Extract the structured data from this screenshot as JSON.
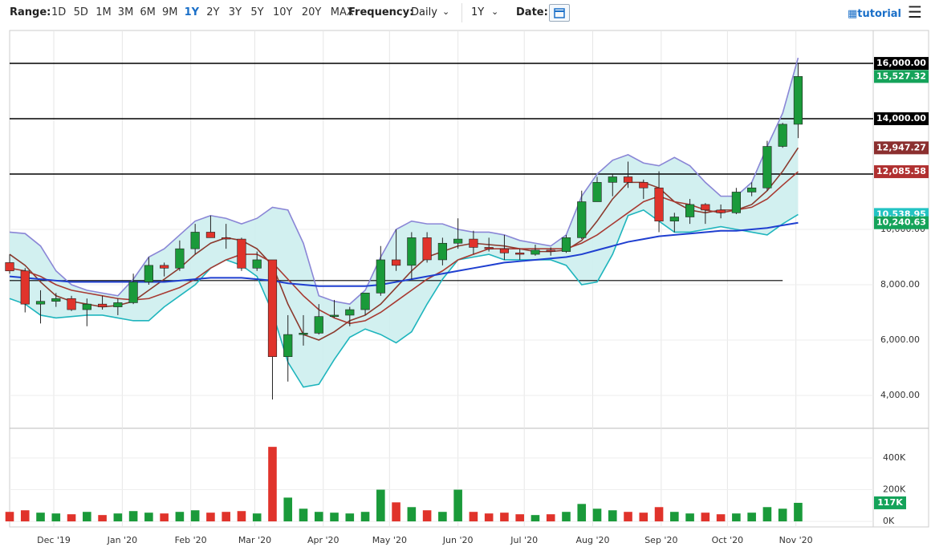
{
  "toolbar": {
    "range_label": "Range:",
    "ranges": [
      "1D",
      "5D",
      "1M",
      "3M",
      "6M",
      "9M",
      "1Y",
      "2Y",
      "3Y",
      "5Y",
      "10Y",
      "20Y",
      "MAX"
    ],
    "active_range": 6,
    "frequency_label": "Frequency:",
    "frequency": "Daily",
    "period": "1Y",
    "date_label": "Date:",
    "tutorial": "tutorial"
  },
  "chart_data": {
    "type": "candlestick",
    "x": [
      0,
      7,
      14,
      21,
      28,
      35,
      42,
      49,
      56,
      63,
      70,
      77,
      84,
      91,
      98,
      105,
      112,
      119,
      126,
      133,
      140,
      147,
      154,
      161,
      168,
      175,
      182,
      189,
      196,
      203,
      210,
      217,
      224,
      231,
      238,
      245,
      252,
      259,
      266,
      273,
      280,
      287,
      294,
      301,
      308,
      315,
      322,
      329,
      336,
      343,
      350,
      357
    ],
    "ohlc": [
      [
        8800,
        9100,
        8400,
        8500
      ],
      [
        8500,
        8600,
        7000,
        7300
      ],
      [
        7300,
        7800,
        6600,
        7400
      ],
      [
        7400,
        7700,
        7200,
        7500
      ],
      [
        7500,
        7600,
        7050,
        7100
      ],
      [
        7100,
        7500,
        6500,
        7300
      ],
      [
        7300,
        7600,
        7100,
        7200
      ],
      [
        7200,
        7500,
        6900,
        7350
      ],
      [
        7350,
        8400,
        7300,
        8100
      ],
      [
        8100,
        9000,
        8000,
        8700
      ],
      [
        8700,
        8800,
        8300,
        8600
      ],
      [
        8600,
        9600,
        8500,
        9300
      ],
      [
        9300,
        10200,
        9100,
        9900
      ],
      [
        9900,
        10500,
        9700,
        9700
      ],
      [
        9700,
        10200,
        9300,
        9650
      ],
      [
        9650,
        9700,
        8500,
        8600
      ],
      [
        8600,
        9200,
        8500,
        8900
      ],
      [
        8900,
        8900,
        3850,
        5400
      ],
      [
        5400,
        6900,
        4500,
        6200
      ],
      [
        6200,
        6900,
        5800,
        6250
      ],
      [
        6250,
        7300,
        6200,
        6850
      ],
      [
        6850,
        7450,
        6800,
        6900
      ],
      [
        6900,
        7200,
        6500,
        7100
      ],
      [
        7100,
        7700,
        6900,
        7700
      ],
      [
        7700,
        9400,
        7600,
        8900
      ],
      [
        8900,
        10000,
        8500,
        8700
      ],
      [
        8700,
        9900,
        8200,
        9700
      ],
      [
        9700,
        9900,
        8800,
        8900
      ],
      [
        8900,
        9700,
        8700,
        9500
      ],
      [
        9500,
        10400,
        9300,
        9650
      ],
      [
        9650,
        9950,
        9100,
        9350
      ],
      [
        9350,
        9700,
        9200,
        9300
      ],
      [
        9300,
        9800,
        8900,
        9150
      ],
      [
        9150,
        9300,
        8900,
        9100
      ],
      [
        9100,
        9450,
        9050,
        9250
      ],
      [
        9250,
        9350,
        9050,
        9200
      ],
      [
        9200,
        9800,
        9150,
        9700
      ],
      [
        9700,
        11400,
        9650,
        11000
      ],
      [
        11000,
        11900,
        11000,
        11700
      ],
      [
        11700,
        12000,
        11200,
        11900
      ],
      [
        11900,
        12450,
        11500,
        11700
      ],
      [
        11700,
        11800,
        11100,
        11500
      ],
      [
        11500,
        12100,
        9900,
        10300
      ],
      [
        10300,
        10600,
        9900,
        10450
      ],
      [
        10450,
        11100,
        10200,
        10900
      ],
      [
        10900,
        10950,
        10200,
        10700
      ],
      [
        10700,
        10900,
        10400,
        10600
      ],
      [
        10600,
        11500,
        10550,
        11350
      ],
      [
        11350,
        11700,
        11200,
        11500
      ],
      [
        11500,
        13200,
        11400,
        13000
      ],
      [
        13000,
        13850,
        12950,
        13800
      ],
      [
        13800,
        16000,
        13300,
        15527.32
      ]
    ],
    "volume": [
      60000,
      70000,
      55000,
      50000,
      45000,
      60000,
      40000,
      50000,
      65000,
      55000,
      50000,
      60000,
      70000,
      55000,
      60000,
      65000,
      50000,
      470000,
      150000,
      80000,
      60000,
      55000,
      50000,
      60000,
      200000,
      120000,
      90000,
      70000,
      60000,
      200000,
      60000,
      50000,
      55000,
      45000,
      40000,
      45000,
      60000,
      110000,
      80000,
      70000,
      60000,
      55000,
      90000,
      60000,
      50000,
      55000,
      45000,
      50000,
      55000,
      90000,
      80000,
      117000
    ],
    "series": [
      {
        "color": "#8a86d6",
        "values": [
          9900,
          9850,
          9400,
          8500,
          8000,
          7800,
          7700,
          7600,
          8200,
          9000,
          9300,
          9800,
          10300,
          10500,
          10400,
          10200,
          10400,
          10800,
          10700,
          9500,
          7600,
          7400,
          7300,
          7800,
          9000,
          10000,
          10300,
          10200,
          10200,
          10000,
          9900,
          9900,
          9800,
          9600,
          9500,
          9400,
          9800,
          11200,
          12000,
          12500,
          12700,
          12400,
          12300,
          12600,
          12300,
          11700,
          11200,
          11200,
          11700,
          13000,
          14200,
          16200
        ]
      },
      {
        "color": "#1fb5bd",
        "values": [
          7500,
          7300,
          6900,
          6800,
          6850,
          6900,
          6900,
          6800,
          6700,
          6700,
          7200,
          7600,
          8000,
          8600,
          8900,
          8700,
          8300,
          7000,
          5200,
          4300,
          4400,
          5300,
          6100,
          6400,
          6200,
          5900,
          6300,
          7300,
          8200,
          8900,
          9000,
          9100,
          8900,
          8900,
          8900,
          8900,
          8700,
          8000,
          8100,
          9100,
          10500,
          10700,
          10300,
          9900,
          9900,
          10000,
          10100,
          10000,
          9900,
          9800,
          10200,
          10538.95
        ]
      },
      {
        "color": "#8b3a2e",
        "values": [
          9100,
          8700,
          8100,
          7600,
          7400,
          7300,
          7200,
          7250,
          7400,
          7800,
          8200,
          8600,
          9100,
          9500,
          9700,
          9600,
          9300,
          8700,
          7300,
          6200,
          6000,
          6300,
          6700,
          6900,
          7300,
          7900,
          8500,
          9000,
          9200,
          9400,
          9500,
          9450,
          9400,
          9300,
          9200,
          9200,
          9250,
          9600,
          10300,
          11100,
          11700,
          11700,
          11500,
          11000,
          10700,
          10600,
          10700,
          10700,
          10900,
          11400,
          12100,
          12947.27
        ]
      },
      {
        "color": "#a83a32",
        "values": [
          8600,
          8500,
          8300,
          8000,
          7800,
          7700,
          7600,
          7500,
          7450,
          7500,
          7700,
          7900,
          8200,
          8600,
          8900,
          9100,
          9100,
          8800,
          8200,
          7600,
          7100,
          6800,
          6600,
          6700,
          7000,
          7400,
          7800,
          8200,
          8500,
          8900,
          9100,
          9300,
          9300,
          9300,
          9300,
          9300,
          9300,
          9500,
          9800,
          10200,
          10600,
          11000,
          11200,
          11000,
          10900,
          10700,
          10600,
          10700,
          10800,
          11100,
          11600,
          12085.58
        ]
      },
      {
        "color": "#1f3fd0",
        "values": [
          8300,
          8250,
          8200,
          8150,
          8100,
          8100,
          8100,
          8100,
          8100,
          8100,
          8100,
          8150,
          8200,
          8250,
          8250,
          8250,
          8200,
          8150,
          8050,
          8000,
          7950,
          7950,
          7950,
          7950,
          8000,
          8100,
          8200,
          8300,
          8400,
          8500,
          8600,
          8700,
          8800,
          8850,
          8900,
          8950,
          9000,
          9100,
          9250,
          9400,
          9550,
          9650,
          9750,
          9800,
          9850,
          9900,
          9950,
          9950,
          10000,
          10050,
          10150,
          10240.63
        ]
      }
    ],
    "band_fill": "#cdeeee",
    "up_color": "#1a9a3a",
    "down_color": "#e0332b",
    "hlines": [
      16000,
      14000,
      12000
    ],
    "support_line": {
      "value": 8150,
      "x_end": 350
    },
    "price_labels": [
      {
        "value": 16000,
        "label": "16,000.00",
        "color": "#000000"
      },
      {
        "value": 15527.32,
        "label": "15,527.32",
        "color": "#15a35a"
      },
      {
        "value": 14000,
        "label": "14,000.00",
        "color": "#000000"
      },
      {
        "value": 12947.27,
        "label": "12,947.27",
        "color": "#8b2f2f"
      },
      {
        "value": 12085.58,
        "label": "12,085.58",
        "color": "#b03030"
      },
      {
        "value": 10538.95,
        "label": "10,538.95",
        "color": "#22c3c3"
      },
      {
        "value": 10240.63,
        "label": "10,240.63",
        "color": "#15a35a"
      }
    ],
    "volume_label": {
      "value": 117000,
      "label": "117K",
      "color": "#15a35a"
    },
    "xlim": [
      0,
      391
    ],
    "xticks": [
      {
        "value": 20,
        "label": "Dec '19"
      },
      {
        "value": 51,
        "label": "Jan '20"
      },
      {
        "value": 82,
        "label": "Feb '20"
      },
      {
        "value": 111,
        "label": "Mar '20"
      },
      {
        "value": 142,
        "label": "Apr '20"
      },
      {
        "value": 172,
        "label": "May '20"
      },
      {
        "value": 203,
        "label": "Jun '20"
      },
      {
        "value": 233,
        "label": "Jul '20"
      },
      {
        "value": 264,
        "label": "Aug '20"
      },
      {
        "value": 295,
        "label": "Sep '20"
      },
      {
        "value": 325,
        "label": "Oct '20"
      },
      {
        "value": 356,
        "label": "Nov '20"
      }
    ],
    "ylim": [
      2840,
      17190
    ],
    "yticks": [
      {
        "value": 4000,
        "label": "4,000.00"
      },
      {
        "value": 6000,
        "label": "6,000.00"
      },
      {
        "value": 8000,
        "label": "8,000.00"
      },
      {
        "value": 10000,
        "label": "10,000.00"
      }
    ],
    "vol_lim": [
      -35000,
      582000
    ],
    "vol_ticks": [
      {
        "value": 0,
        "label": "0K"
      },
      {
        "value": 200000,
        "label": "200K"
      },
      {
        "value": 400000,
        "label": "400K"
      }
    ]
  }
}
